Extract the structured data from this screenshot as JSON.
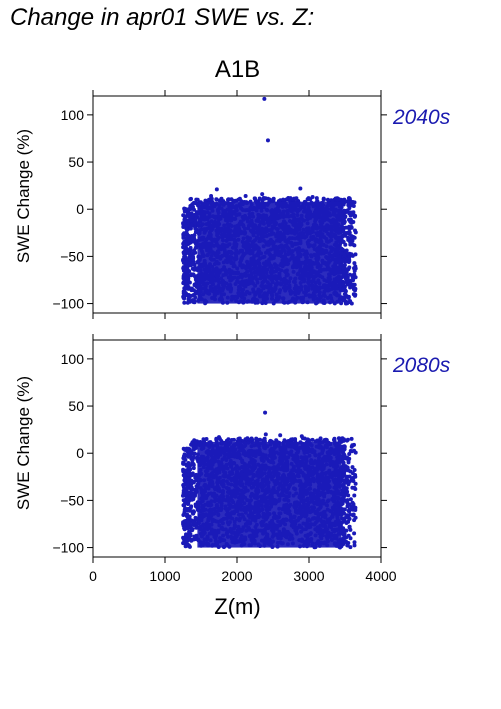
{
  "figure_title": "Change in apr01 SWE vs. Z:",
  "scenario_title": "A1B",
  "x_label": "Z(m)",
  "colors": {
    "points": "#1a1ab8",
    "period_label": "#1a1ab0"
  },
  "chart_data": [
    {
      "type": "scatter",
      "period": "2040s",
      "ylabel": "SWE Change (%)",
      "xlim": [
        0,
        4000
      ],
      "ylim": [
        -110,
        120
      ],
      "yticks": [
        "100",
        "50",
        "0",
        "−50",
        "−100"
      ],
      "ytick_values": [
        100,
        50,
        0,
        -50,
        -100
      ],
      "xticks": [
        0,
        1000,
        2000,
        3000,
        4000
      ],
      "grid": false,
      "envelope": {
        "x_min": 1250,
        "x_max": 3650,
        "y_min": -100,
        "y_max": 12,
        "dense_x_start": 1350
      },
      "outliers": [
        {
          "x": 2380,
          "y": 117
        },
        {
          "x": 2430,
          "y": 73
        },
        {
          "x": 1720,
          "y": 21
        },
        {
          "x": 2880,
          "y": 22
        },
        {
          "x": 2350,
          "y": 16
        },
        {
          "x": 1640,
          "y": 14
        },
        {
          "x": 2120,
          "y": 14
        },
        {
          "x": 3050,
          "y": 13
        }
      ]
    },
    {
      "type": "scatter",
      "period": "2080s",
      "ylabel": "SWE Change (%)",
      "xlim": [
        0,
        4000
      ],
      "ylim": [
        -110,
        120
      ],
      "yticks": [
        "100",
        "50",
        "0",
        "−50",
        "−100"
      ],
      "ytick_values": [
        100,
        50,
        0,
        -50,
        -100
      ],
      "xticks": [
        "0",
        "1000",
        "2000",
        "3000",
        "4000"
      ],
      "xtick_values": [
        0,
        1000,
        2000,
        3000,
        4000
      ],
      "grid": false,
      "envelope": {
        "x_min": 1250,
        "x_max": 3650,
        "y_min": -100,
        "y_max": 16,
        "dense_x_start": 1350
      },
      "outliers": [
        {
          "x": 2390,
          "y": 43
        },
        {
          "x": 2400,
          "y": 20
        },
        {
          "x": 2600,
          "y": 19
        },
        {
          "x": 2900,
          "y": 18
        },
        {
          "x": 1750,
          "y": 17
        }
      ]
    }
  ]
}
